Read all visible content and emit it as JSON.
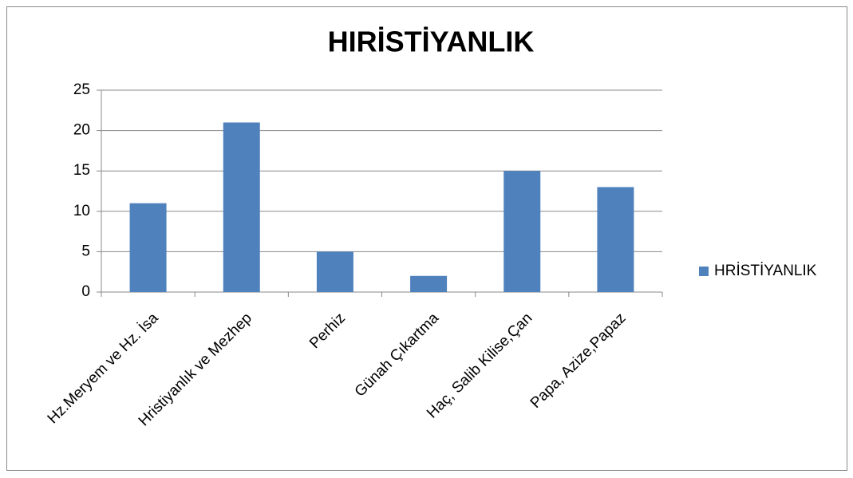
{
  "chart_data": {
    "type": "bar",
    "title": "HIRİSTİYANLIK",
    "categories": [
      "Hz.Meryem ve Hz. İsa",
      "Hristiyanlık ve Mezhep",
      "Perhiz",
      "Günah Çıkartma",
      "Haç, Salib Kilise,Çan",
      "Papa, Azize,Papaz"
    ],
    "series": [
      {
        "name": "HRİSTİYANLIK",
        "color": "#4f81bd",
        "values": [
          11,
          21,
          5,
          2,
          15,
          13
        ]
      }
    ],
    "ylim": [
      0,
      25
    ],
    "yticks": [
      0,
      5,
      10,
      15,
      20,
      25
    ],
    "grid": true,
    "legend": "right"
  }
}
